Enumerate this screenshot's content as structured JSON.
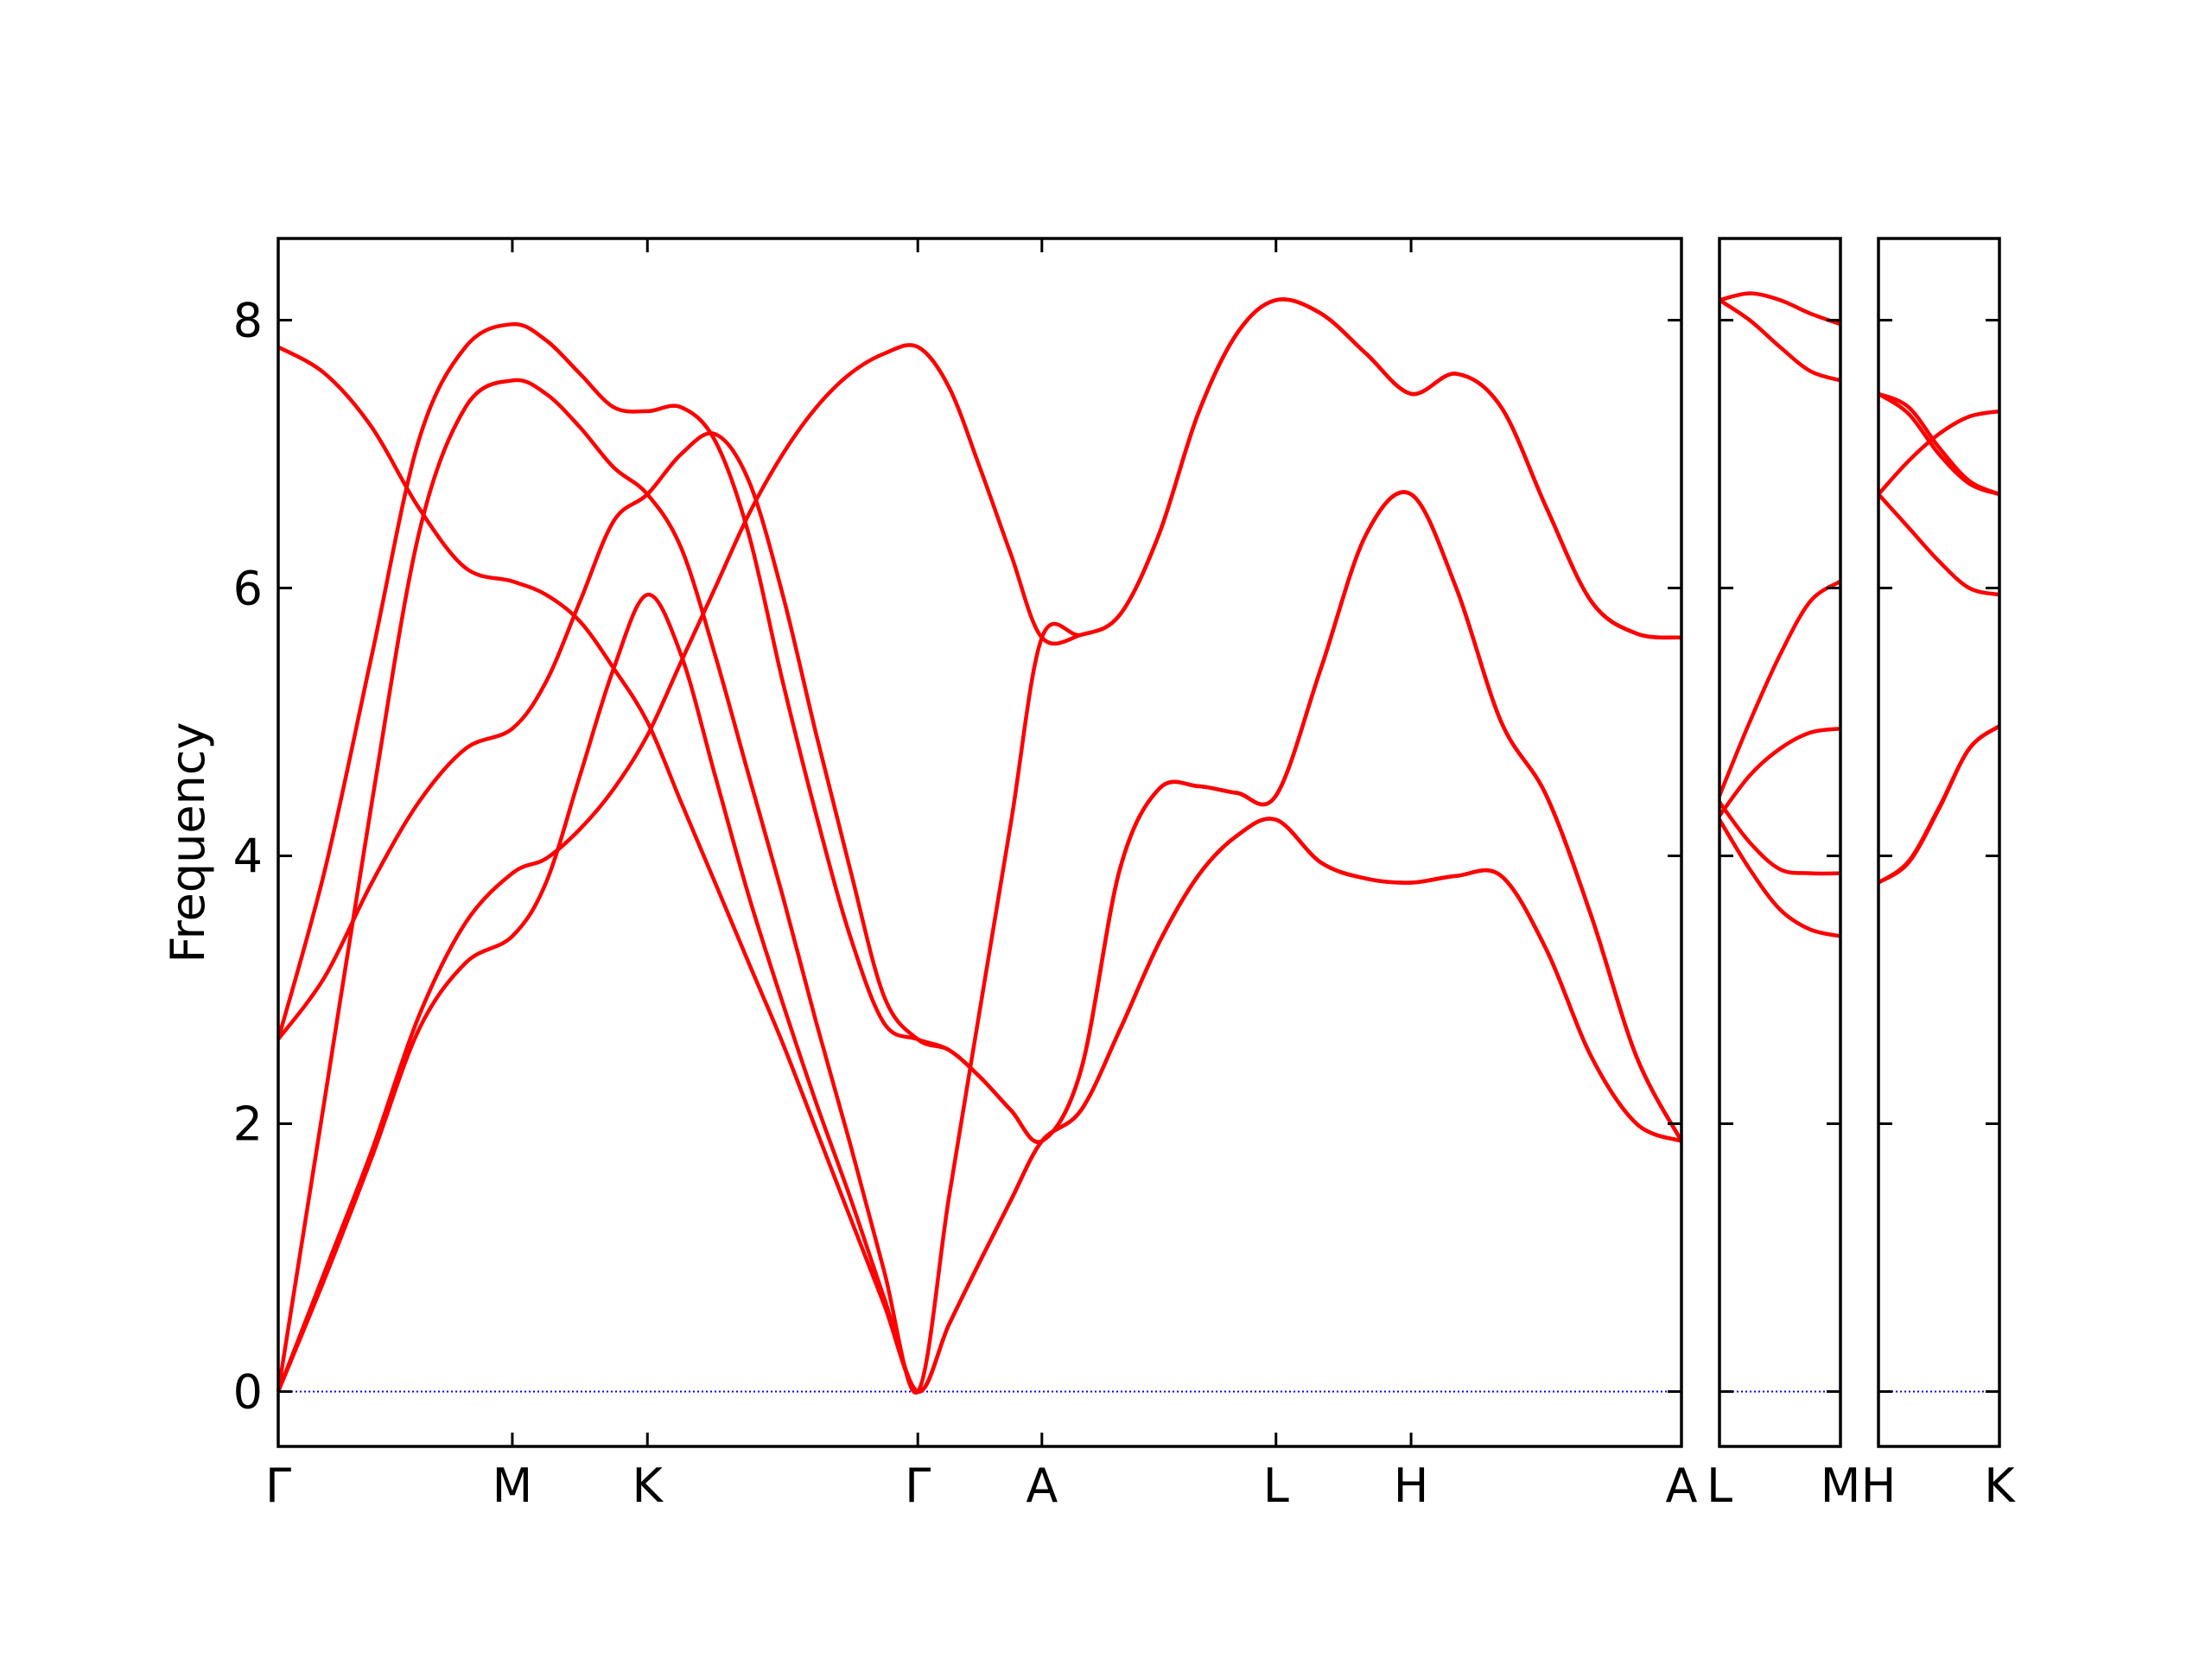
{
  "chart_data": [
    {
      "type": "line",
      "ylabel": "Frequency",
      "xlim": [
        0,
        5.994
      ],
      "ylim": [
        -0.41,
        8.61
      ],
      "xticks": [
        {
          "value": 0,
          "label": "Γ"
        },
        {
          "value": 1,
          "label": "M"
        },
        {
          "value": 1.577,
          "label": "K"
        },
        {
          "value": 2.732,
          "label": "Γ"
        },
        {
          "value": 3.262,
          "label": "A"
        },
        {
          "value": 4.262,
          "label": "L"
        },
        {
          "value": 4.839,
          "label": "H"
        },
        {
          "value": 5.994,
          "label": "A"
        }
      ],
      "yticks": [
        0,
        2,
        4,
        6,
        8
      ],
      "ytick_labels": true,
      "hline": {
        "value": 0,
        "color": "#0000ff"
      },
      "x": [
        0,
        0.2,
        0.4,
        0.6,
        0.8,
        1,
        1.144,
        1.289,
        1.433,
        1.577,
        1.721,
        1.866,
        2.01,
        2.155,
        2.299,
        2.443,
        2.588,
        2.732,
        2.865,
        2.997,
        3.13,
        3.262,
        3.429,
        3.595,
        3.762,
        3.929,
        4.095,
        4.262,
        4.454,
        4.647,
        4.839,
        5.032,
        5.224,
        5.417,
        5.609,
        5.802,
        5.994
      ],
      "series": [
        {
          "color": "#ff0000",
          "values": [
            0,
            0.85,
            1.75,
            2.7,
            3.2,
            3.4,
            3.8,
            4.6,
            5.4,
            5.95,
            5.5,
            4.6,
            3.7,
            2.9,
            2.15,
            1.45,
            0.7,
            0,
            0.5,
            0.97,
            1.43,
            1.87,
            2.1,
            2.7,
            3.35,
            3.85,
            4.15,
            4.27,
            3.95,
            3.83,
            3.8,
            3.85,
            3.85,
            3.3,
            2.5,
            2.0,
            1.87
          ]
        },
        {
          "color": "#ff0000",
          "values": [
            7.8,
            7.6,
            7.2,
            6.6,
            6.15,
            6.05,
            5.95,
            5.75,
            5.4,
            5.0,
            4.4,
            3.8,
            3.2,
            2.6,
            1.95,
            1.3,
            0.65,
            0,
            0.5,
            0.97,
            1.43,
            1.87,
            2.1,
            2.7,
            3.35,
            3.85,
            4.15,
            4.27,
            3.95,
            3.83,
            3.8,
            3.85,
            3.85,
            3.3,
            2.5,
            2.0,
            1.87
          ]
        },
        {
          "color": "#ff0000",
          "values": [
            0,
            0.9,
            1.8,
            2.8,
            3.5,
            3.87,
            3.98,
            4.2,
            4.5,
            4.9,
            5.45,
            6.0,
            6.55,
            7.0,
            7.35,
            7.6,
            7.75,
            7.8,
            7.5,
            6.9,
            6.25,
            5.63,
            5.65,
            5.8,
            6.4,
            7.3,
            7.9,
            8.15,
            8.05,
            7.75,
            7.45,
            7.6,
            7.35,
            6.6,
            5.9,
            5.66,
            5.63
          ]
        },
        {
          "color": "#ff0000",
          "values": [
            0,
            2.2,
            4.4,
            6.4,
            7.35,
            7.55,
            7.45,
            7.2,
            6.9,
            6.7,
            6.3,
            5.5,
            4.6,
            3.7,
            2.75,
            1.85,
            0.9,
            0,
            1.45,
            2.85,
            4.25,
            5.63,
            5.65,
            5.8,
            6.4,
            7.3,
            7.9,
            8.15,
            8.05,
            7.75,
            7.45,
            7.6,
            7.35,
            6.6,
            5.9,
            5.66,
            5.63
          ]
        },
        {
          "color": "#ff0000",
          "values": [
            2.63,
            3.9,
            5.5,
            7.1,
            7.8,
            7.97,
            7.85,
            7.6,
            7.35,
            7.32,
            7.35,
            7.1,
            6.4,
            5.3,
            4.3,
            3.4,
            2.75,
            2.63,
            2.55,
            2.35,
            2.1,
            1.87,
            2.4,
            3.9,
            4.5,
            4.52,
            4.47,
            4.45,
            5.4,
            6.4,
            6.7,
            6.0,
            5.0,
            4.45,
            3.55,
            2.5,
            1.87
          ]
        },
        {
          "color": "#ff0000",
          "values": [
            2.63,
            3.1,
            3.8,
            4.4,
            4.8,
            4.95,
            5.3,
            5.9,
            6.5,
            6.7,
            7.0,
            7.15,
            6.8,
            5.95,
            4.9,
            3.9,
            2.95,
            2.63,
            2.55,
            2.35,
            2.1,
            1.87,
            2.4,
            3.9,
            4.5,
            4.52,
            4.47,
            4.45,
            5.4,
            6.4,
            6.7,
            6.0,
            5.0,
            4.45,
            3.55,
            2.5,
            1.87
          ]
        }
      ]
    },
    {
      "type": "line",
      "xlim": [
        0,
        0.53
      ],
      "ylim": [
        -0.41,
        8.61
      ],
      "xticks": [
        {
          "value": 0,
          "label": "L"
        },
        {
          "value": 0.53,
          "label": "M"
        }
      ],
      "yticks": [
        0,
        2,
        4,
        6,
        8
      ],
      "ytick_labels": false,
      "hline": {
        "value": 0,
        "color": "#0000ff"
      },
      "x": [
        0,
        0.1325,
        0.265,
        0.3975,
        0.53
      ],
      "series": [
        {
          "color": "#ff0000",
          "values": [
            8.15,
            8.2,
            8.15,
            8.05,
            7.97
          ]
        },
        {
          "color": "#ff0000",
          "values": [
            8.15,
            8.0,
            7.8,
            7.62,
            7.55
          ]
        },
        {
          "color": "#ff0000",
          "values": [
            4.45,
            5.0,
            5.5,
            5.9,
            6.05
          ]
        },
        {
          "color": "#ff0000",
          "values": [
            4.3,
            4.6,
            4.8,
            4.92,
            4.95
          ]
        },
        {
          "color": "#ff0000",
          "values": [
            4.4,
            4.1,
            3.9,
            3.87,
            3.87
          ]
        },
        {
          "color": "#ff0000",
          "values": [
            4.27,
            3.9,
            3.6,
            3.45,
            3.4
          ]
        }
      ]
    },
    {
      "type": "line",
      "xlim": [
        0,
        0.53
      ],
      "ylim": [
        -0.41,
        8.61
      ],
      "xticks": [
        {
          "value": 0,
          "label": "H"
        },
        {
          "value": 0.53,
          "label": "K"
        }
      ],
      "yticks": [
        0,
        2,
        4,
        6,
        8
      ],
      "ytick_labels": false,
      "hline": {
        "value": 0,
        "color": "#0000ff"
      },
      "x": [
        0,
        0.1325,
        0.265,
        0.3975,
        0.53
      ],
      "series": [
        {
          "color": "#ff0000",
          "values": [
            7.45,
            7.35,
            7.05,
            6.8,
            6.7
          ]
        },
        {
          "color": "#ff0000",
          "values": [
            7.45,
            7.3,
            7.0,
            6.78,
            6.7
          ]
        },
        {
          "color": "#ff0000",
          "values": [
            6.7,
            6.95,
            7.15,
            7.28,
            7.32
          ]
        },
        {
          "color": "#ff0000",
          "values": [
            6.7,
            6.45,
            6.2,
            6.0,
            5.95
          ]
        },
        {
          "color": "#ff0000",
          "values": [
            3.8,
            3.95,
            4.35,
            4.8,
            4.97
          ]
        },
        {
          "color": "#ff0000",
          "values": [
            3.8,
            3.96,
            4.36,
            4.8,
            4.97
          ]
        }
      ]
    }
  ]
}
